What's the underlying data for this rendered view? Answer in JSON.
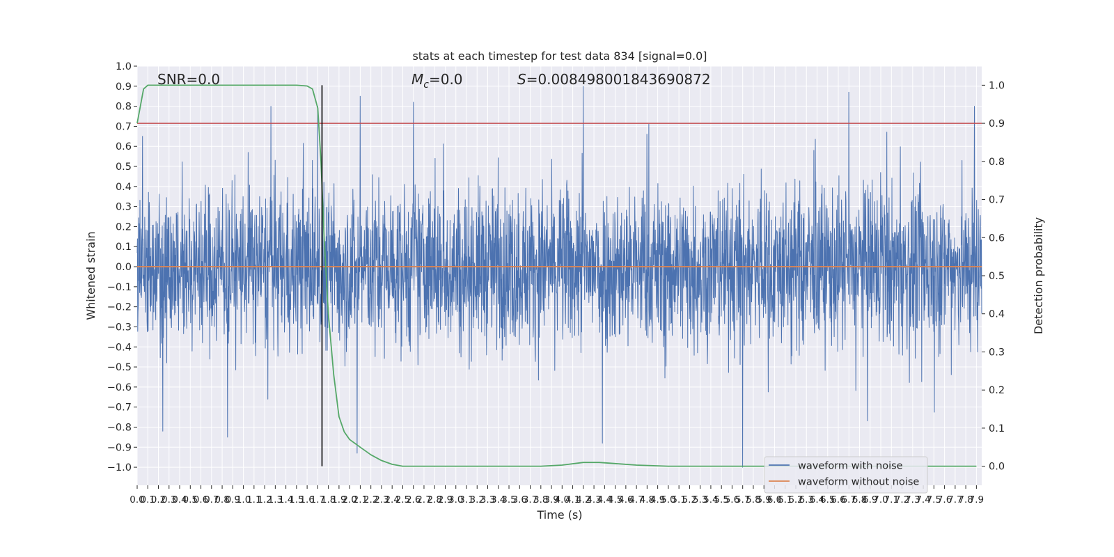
{
  "chart_data": {
    "type": "line",
    "title": "stats at each timestep for test data 834 [signal=0.0]",
    "xlabel": "Time (s)",
    "ylabel_left": "Whitened strain",
    "ylabel_right": "Detection probability",
    "annotations": {
      "snr": "SNR=0.0",
      "mc_symbol": "M",
      "mc_sub": "c",
      "mc_value": "=0.0",
      "s_symbol": "S",
      "s_value": "=0.008498001843690872"
    },
    "xlim": [
      0.0,
      7.95
    ],
    "ylim_left": [
      -1.09,
      1.0
    ],
    "ylim_right": [
      -0.05,
      1.05
    ],
    "xticks": [
      0.0,
      0.1,
      0.2,
      0.3,
      0.4,
      0.5,
      0.6,
      0.7,
      0.8,
      0.9,
      1.0,
      1.1,
      1.2,
      1.3,
      1.4,
      1.5,
      1.6,
      1.7,
      1.8,
      1.9,
      2.0,
      2.1,
      2.2,
      2.3,
      2.4,
      2.5,
      2.6,
      2.7,
      2.8,
      2.9,
      3.0,
      3.1,
      3.2,
      3.3,
      3.4,
      3.5,
      3.6,
      3.7,
      3.8,
      3.9,
      4.0,
      4.1,
      4.2,
      4.3,
      4.4,
      4.5,
      4.6,
      4.7,
      4.8,
      4.9,
      5.0,
      5.1,
      5.2,
      5.3,
      5.4,
      5.5,
      5.6,
      5.7,
      5.8,
      5.9,
      6.0,
      6.1,
      6.2,
      6.3,
      6.4,
      6.5,
      6.6,
      6.7,
      6.8,
      6.9,
      7.0,
      7.1,
      7.2,
      7.3,
      7.4,
      7.5,
      7.6,
      7.7,
      7.8,
      7.9
    ],
    "xtick_labels": [
      "0.0",
      "0.1",
      "0.2",
      "0.3",
      "0.4",
      "0.5",
      "0.6",
      "0.7",
      "0.8",
      "0.9",
      "1.0",
      "1.1",
      "1.2",
      "1.3",
      "1.4",
      "1.5",
      "1.6",
      "1.7",
      "1.8",
      "1.9",
      "2.0",
      "2.1",
      "2.2",
      "2.3",
      "2.4",
      "2.5",
      "2.6",
      "2.7",
      "2.8",
      "2.9",
      "3.0",
      "3.1",
      "3.2",
      "3.3",
      "3.4",
      "3.5",
      "3.6",
      "3.7",
      "3.8",
      "3.9",
      "4.0",
      "4.1",
      "4.2",
      "4.3",
      "4.4",
      "4.5",
      "4.6",
      "4.7",
      "4.8",
      "4.9",
      "5.0",
      "5.1",
      "5.2",
      "5.3",
      "5.4",
      "5.5",
      "5.6",
      "5.7",
      "5.8",
      "5.9",
      "6.0",
      "6.1",
      "6.2",
      "6.3",
      "6.4",
      "6.5",
      "6.6",
      "6.7",
      "6.8",
      "6.9",
      "7.0",
      "7.1",
      "7.2",
      "7.3",
      "7.4",
      "7.5",
      "7.6",
      "7.7",
      "7.8",
      "7.9"
    ],
    "yticks_left": [
      1.0,
      0.9,
      0.8,
      0.7,
      0.6,
      0.5,
      0.4,
      0.3,
      0.2,
      0.1,
      0.0,
      -0.1,
      -0.2,
      -0.3,
      -0.4,
      -0.5,
      -0.6,
      -0.7,
      -0.8,
      -0.9,
      -1.0
    ],
    "ytick_labels_left": [
      "1.0",
      "0.9",
      "0.8",
      "0.7",
      "0.6",
      "0.5",
      "0.4",
      "0.3",
      "0.2",
      "0.1",
      "0.0",
      "−0.1",
      "−0.2",
      "−0.3",
      "−0.4",
      "−0.5",
      "−0.6",
      "−0.7",
      "−0.8",
      "−0.9",
      "−1.0"
    ],
    "yticks_right": [
      1.0,
      0.9,
      0.8,
      0.7,
      0.6,
      0.5,
      0.4,
      0.3,
      0.2,
      0.1,
      0.0
    ],
    "ytick_labels_right": [
      "1.0",
      "0.9",
      "0.8",
      "0.7",
      "0.6",
      "0.5",
      "0.4",
      "0.3",
      "0.2",
      "0.1",
      "0.0"
    ],
    "grid": true,
    "legend_placement": "lower-right",
    "series": [
      {
        "name": "waveform with noise",
        "axis": "left",
        "color": "#4c72b0",
        "kind": "noise",
        "envelope": {
          "typical_peak": [
            -0.6,
            0.65
          ],
          "max": 0.9,
          "min": -1.0
        },
        "notable_peaks": [
          {
            "x": 0.05,
            "y": 0.65
          },
          {
            "x": 0.24,
            "y": -0.82
          },
          {
            "x": 0.85,
            "y": -0.85
          },
          {
            "x": 1.26,
            "y": 0.8
          },
          {
            "x": 1.7,
            "y": 0.8
          },
          {
            "x": 2.07,
            "y": -0.93
          },
          {
            "x": 2.1,
            "y": 0.85
          },
          {
            "x": 2.6,
            "y": 0.82
          },
          {
            "x": 4.2,
            "y": 0.9
          },
          {
            "x": 4.38,
            "y": -0.88
          },
          {
            "x": 5.7,
            "y": -1.0
          },
          {
            "x": 6.7,
            "y": 0.87
          },
          {
            "x": 7.88,
            "y": 0.8
          }
        ]
      },
      {
        "name": "waveform without noise",
        "axis": "left",
        "color": "#dd8452",
        "x": [
          0.0,
          7.95
        ],
        "y": [
          0.0,
          0.0
        ]
      },
      {
        "name": "",
        "axis": "right",
        "color": "#55a868",
        "x": [
          0.0,
          0.06,
          0.1,
          0.2,
          0.5,
          1.0,
          1.5,
          1.6,
          1.65,
          1.7,
          1.73,
          1.76,
          1.8,
          1.85,
          1.9,
          1.95,
          2.0,
          2.1,
          2.2,
          2.3,
          2.4,
          2.5,
          2.6,
          2.8,
          3.0,
          3.5,
          3.8,
          4.0,
          4.2,
          4.35,
          4.5,
          4.7,
          5.0,
          5.5,
          6.0,
          6.5,
          7.0,
          7.5,
          7.9
        ],
        "y": [
          0.9,
          0.99,
          1.0,
          1.0,
          1.0,
          1.0,
          1.0,
          0.998,
          0.99,
          0.94,
          0.8,
          0.6,
          0.4,
          0.24,
          0.13,
          0.09,
          0.07,
          0.05,
          0.03,
          0.015,
          0.005,
          0.0,
          0.0,
          0.0,
          0.0,
          0.0,
          0.0,
          0.003,
          0.01,
          0.01,
          0.007,
          0.003,
          0.0,
          0.0,
          0.0,
          0.0,
          0.0,
          0.0,
          0.0
        ]
      }
    ],
    "threshold": {
      "axis": "right",
      "value": 0.9,
      "color": "#c44e52"
    },
    "vertical_marker": {
      "x": 1.74,
      "color": "#000000"
    }
  },
  "legend": [
    {
      "label": "waveform with noise",
      "color": "#4c72b0"
    },
    {
      "label": "waveform without noise",
      "color": "#dd8452"
    }
  ],
  "colors": {
    "axes_bg": "#eaeaf2",
    "grid": "#ffffff",
    "text": "#262626"
  }
}
